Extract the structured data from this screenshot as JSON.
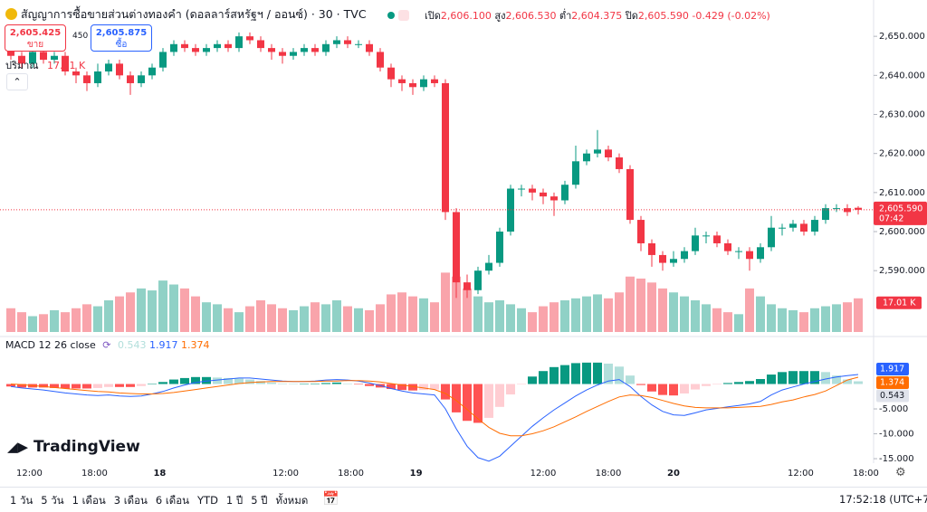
{
  "header": {
    "title": "สัญญาการซื้อขายส่วนต่างทองคำ (ดอลลาร์สหรัฐฯ / ออนซ์) · 30 · TVC",
    "open_label": "เปิด",
    "open": "2,606.100",
    "high_label": "สูง",
    "high": "2,606.530",
    "low_label": "ต่ำ",
    "low": "2,604.375",
    "close_label": "ปิด",
    "close": "2,605.590",
    "change": "-0.429 (-0.02%)",
    "sell_price": "2,605.425",
    "sell_label": "ขาย",
    "spread": "450",
    "buy_price": "2,605.875",
    "buy_label": "ซื้อ"
  },
  "toolbar": {
    "ranges": [
      "1 วัน",
      "5 วัน",
      "1 เดือน",
      "3 เดือน",
      "6 เดือน",
      "YTD",
      "1 ปี",
      "5 ปี",
      "ทั้งหมด"
    ],
    "clock": "17:52:18 (UTC+7)",
    "logo": "TradingView"
  },
  "chart_data": [
    {
      "type": "candlestick",
      "x": [
        1,
        2,
        3,
        4,
        5,
        6,
        7,
        8,
        9,
        10,
        11,
        12,
        13,
        14,
        15,
        16,
        17,
        18,
        19,
        20,
        21,
        22,
        23,
        24,
        25,
        26,
        27,
        28,
        29,
        30,
        31,
        32,
        33,
        34,
        35,
        36,
        37,
        38,
        39,
        40,
        41,
        42,
        43,
        44,
        45,
        46,
        47,
        48,
        49,
        50,
        51,
        52,
        53,
        54,
        55,
        56,
        57,
        58,
        59,
        60,
        61,
        62,
        63,
        64,
        65,
        66,
        67,
        68,
        69,
        70,
        71,
        72,
        73,
        74,
        75,
        76,
        77,
        78,
        79
      ],
      "open": [
        2647,
        2645,
        2643,
        2646,
        2644,
        2645,
        2641,
        2640,
        2638,
        2641,
        2643,
        2640,
        2638,
        2640,
        2642,
        2646,
        2648,
        2647,
        2646,
        2647,
        2648,
        2647,
        2650,
        2649,
        2647,
        2646,
        2645,
        2646,
        2647,
        2646,
        2648,
        2649,
        2648,
        2648,
        2646,
        2642,
        2639,
        2638,
        2637,
        2639,
        2638,
        2605,
        2587,
        2585,
        2590,
        2592,
        2600,
        2611,
        2611,
        2610,
        2609,
        2608,
        2612,
        2618,
        2620,
        2621,
        2619,
        2616,
        2603,
        2597,
        2594,
        2592,
        2593,
        2595,
        2599,
        2599,
        2597,
        2595,
        2595,
        2593,
        2596,
        2601,
        2601,
        2602,
        2600,
        2603,
        2606,
        2606,
        2606.1
      ],
      "high": [
        2648,
        2646,
        2647,
        2647,
        2646,
        2646,
        2642,
        2641,
        2643,
        2644,
        2644,
        2641,
        2641,
        2643,
        2647,
        2649,
        2649,
        2648,
        2648,
        2649,
        2649,
        2651,
        2651,
        2650,
        2648,
        2647,
        2647,
        2648,
        2648,
        2649,
        2650,
        2650,
        2649,
        2649,
        2647,
        2643,
        2640,
        2639,
        2640,
        2640,
        2639,
        2606,
        2589,
        2591,
        2594,
        2601,
        2612,
        2612,
        2612,
        2611,
        2610,
        2613,
        2622,
        2621,
        2626,
        2622,
        2620,
        2617,
        2604,
        2598,
        2595,
        2595,
        2596,
        2601,
        2600,
        2600,
        2598,
        2596,
        2596,
        2597,
        2604,
        2602,
        2603,
        2603,
        2604,
        2607,
        2607,
        2607,
        2606.53
      ],
      "low": [
        2644,
        2642,
        2642,
        2643,
        2643,
        2640,
        2638,
        2636,
        2637,
        2640,
        2639,
        2635,
        2637,
        2639,
        2641,
        2645,
        2646,
        2645,
        2645,
        2646,
        2646,
        2646,
        2648,
        2646,
        2644,
        2643,
        2644,
        2645,
        2645,
        2645,
        2647,
        2647,
        2647,
        2645,
        2641,
        2637,
        2636,
        2635,
        2636,
        2637,
        2603,
        2583,
        2583,
        2584,
        2589,
        2591,
        2599,
        2609,
        2608,
        2607,
        2604,
        2607,
        2611,
        2617,
        2619,
        2618,
        2615,
        2602,
        2595,
        2591,
        2590,
        2591,
        2592,
        2594,
        2597,
        2596,
        2594,
        2593,
        2590,
        2592,
        2595,
        2599,
        2600,
        2599,
        2599,
        2602,
        2605,
        2604,
        2604.375
      ],
      "close": [
        2645,
        2643,
        2646,
        2644,
        2645,
        2641,
        2640,
        2638,
        2641,
        2643,
        2640,
        2638,
        2640,
        2642,
        2646,
        2648,
        2647,
        2646,
        2647,
        2648,
        2647,
        2650,
        2649,
        2647,
        2646,
        2645,
        2646,
        2647,
        2646,
        2648,
        2649,
        2648,
        2648,
        2646,
        2642,
        2639,
        2638,
        2637,
        2639,
        2638,
        2605,
        2587,
        2585,
        2590,
        2592,
        2600,
        2611,
        2611,
        2610,
        2609,
        2608,
        2612,
        2618,
        2620,
        2621,
        2619,
        2616,
        2603,
        2597,
        2594,
        2592,
        2593,
        2595,
        2599,
        2599,
        2597,
        2595,
        2595,
        2593,
        2596,
        2601,
        2601,
        2602,
        2600,
        2603,
        2606,
        2606,
        2605,
        2605.59
      ],
      "last_price_label": "2,605.590",
      "countdown": "07:42",
      "up_color": "#089981",
      "down_color": "#f23645",
      "xlim": [
        0,
        80
      ],
      "xticks": [
        {
          "value": 2.7,
          "label": "12:00"
        },
        {
          "value": 8.7,
          "label": "18:00"
        },
        {
          "value": 14.7,
          "label": "18"
        },
        {
          "value": 26.3,
          "label": "12:00"
        },
        {
          "value": 32.3,
          "label": "18:00"
        },
        {
          "value": 38.3,
          "label": "19"
        },
        {
          "value": 50,
          "label": "12:00"
        },
        {
          "value": 56,
          "label": "18:00"
        },
        {
          "value": 62,
          "label": "20"
        },
        {
          "value": 73.7,
          "label": "12:00"
        },
        {
          "value": 79.7,
          "label": "18:00"
        }
      ],
      "ylim": [
        2573.6,
        2659.3
      ],
      "yticks": [
        {
          "value": 2590,
          "label": "2,590.000"
        },
        {
          "value": 2600,
          "label": "2,600.000"
        },
        {
          "value": 2610,
          "label": "2,610.000"
        },
        {
          "value": 2620,
          "label": "2,620.000"
        },
        {
          "value": 2630,
          "label": "2,630.000"
        },
        {
          "value": 2640,
          "label": "2,640.000"
        },
        {
          "value": 2650,
          "label": "2,650.000"
        }
      ],
      "volume": {
        "name": "ปริมาณ",
        "ylim": [
          0,
          32
        ],
        "values": [
          12,
          10,
          8,
          9,
          11,
          10,
          12,
          14,
          13,
          16,
          18,
          20,
          22,
          21,
          26,
          24,
          22,
          18,
          15,
          14,
          12,
          10,
          13,
          16,
          14,
          12,
          11,
          13,
          15,
          14,
          16,
          13,
          12,
          11,
          14,
          19,
          20,
          18,
          17,
          15,
          30,
          28,
          22,
          18,
          15,
          16,
          14,
          12,
          10,
          13,
          15,
          16,
          17,
          18,
          19,
          17,
          20,
          28,
          27,
          25,
          22,
          20,
          18,
          16,
          14,
          12,
          10,
          9,
          22,
          18,
          14,
          12,
          11,
          10,
          12,
          13,
          14,
          15,
          17.01
        ],
        "value_labels": [
          null,
          null,
          null,
          null,
          null,
          null,
          null,
          null,
          null,
          null,
          null,
          null,
          null,
          null,
          null,
          null,
          null,
          null,
          null,
          null,
          null,
          null,
          null,
          null,
          null,
          null,
          null,
          null,
          null,
          null,
          null,
          null,
          null,
          null,
          null,
          null,
          null,
          null,
          null,
          null,
          null,
          null,
          null,
          null,
          null,
          null,
          null,
          null,
          null,
          null,
          null,
          null,
          null,
          null,
          null,
          null,
          null,
          null,
          null,
          null,
          null,
          null,
          null,
          null,
          null,
          null,
          null,
          null,
          null,
          null,
          null,
          null,
          null,
          null,
          null,
          null,
          null,
          null,
          "17.01 K"
        ]
      }
    },
    {
      "type": "macd",
      "title": "MACD 12 26 close",
      "macd": [
        -0.5,
        -0.8,
        -1,
        -1.2,
        -1.5,
        -1.8,
        -2,
        -2.2,
        -2.3,
        -2.2,
        -2.4,
        -2.5,
        -2.4,
        -2,
        -1.5,
        -0.8,
        -0.2,
        0.3,
        0.6,
        0.8,
        1,
        1.2,
        1.2,
        1,
        0.8,
        0.6,
        0.5,
        0.5,
        0.6,
        0.8,
        0.9,
        0.8,
        0.6,
        0.2,
        -0.3,
        -0.9,
        -1.4,
        -1.8,
        -2,
        -2.2,
        -5,
        -9,
        -12.5,
        -14.8,
        -15.5,
        -14.5,
        -12.5,
        -10.5,
        -8.5,
        -6.8,
        -5.2,
        -3.8,
        -2.4,
        -1.2,
        -0.2,
        0.6,
        0.9,
        -0.5,
        -2.5,
        -4.2,
        -5.5,
        -6.2,
        -6.3,
        -5.8,
        -5.2,
        -4.9,
        -4.6,
        -4.3,
        -4,
        -3.5,
        -2.2,
        -1.2,
        -0.6,
        0,
        0.5,
        1,
        1.4,
        1.7,
        1.917
      ],
      "signal": [
        0,
        -0.1,
        -0.3,
        -0.5,
        -0.7,
        -0.9,
        -1.1,
        -1.3,
        -1.5,
        -1.6,
        -1.8,
        -1.9,
        -2,
        -2,
        -1.9,
        -1.7,
        -1.4,
        -1.1,
        -0.8,
        -0.5,
        -0.2,
        0.1,
        0.3,
        0.4,
        0.5,
        0.5,
        0.5,
        0.5,
        0.5,
        0.6,
        0.6,
        0.7,
        0.7,
        0.6,
        0.4,
        0.1,
        -0.2,
        -0.5,
        -0.8,
        -1.1,
        -1.9,
        -3.3,
        -5.1,
        -7,
        -8.7,
        -9.9,
        -10.4,
        -10.4,
        -10,
        -9.4,
        -8.6,
        -7.6,
        -6.6,
        -5.5,
        -4.5,
        -3.5,
        -2.6,
        -2.2,
        -2.3,
        -2.7,
        -3.3,
        -3.9,
        -4.4,
        -4.7,
        -4.8,
        -4.8,
        -4.8,
        -4.7,
        -4.6,
        -4.5,
        -4.1,
        -3.6,
        -3.2,
        -2.6,
        -2.1,
        -1.4,
        -0.3,
        0.8,
        1.374
      ],
      "histogram": [
        -0.5,
        -0.7,
        -0.7,
        -0.7,
        -0.8,
        -0.9,
        -0.9,
        -0.9,
        -0.8,
        -0.6,
        -0.6,
        -0.6,
        -0.4,
        0,
        0.4,
        0.9,
        1.2,
        1.4,
        1.4,
        1.3,
        1.2,
        1.1,
        0.9,
        0.6,
        0.3,
        0.1,
        0,
        0,
        0.1,
        0.2,
        0.3,
        0.1,
        -0.1,
        -0.4,
        -0.7,
        -1,
        -1.2,
        -1.3,
        -1.2,
        -1.1,
        -3.1,
        -5.7,
        -7.4,
        -7.8,
        -6.8,
        -4.6,
        -2.1,
        -0.1,
        1.5,
        2.6,
        3.4,
        3.8,
        4.2,
        4.3,
        4.3,
        4.1,
        3.5,
        1.7,
        -0.2,
        -1.5,
        -2.2,
        -2.3,
        -1.9,
        -1.1,
        -0.4,
        -0.1,
        0.2,
        0.4,
        0.6,
        1,
        1.9,
        2.4,
        2.6,
        2.6,
        2.6,
        2.4,
        1.7,
        0.9,
        0.543
      ],
      "histogram_label": "0.543",
      "macd_label": "1.917",
      "signal_label": "1.374",
      "macd_color": "#2962ff",
      "signal_color": "#ff6d00",
      "histogram_colors": [
        "#089981",
        "#b2dfdb",
        "#ffcdd2",
        "#ff5252"
      ],
      "ylim": [
        -15.9,
        9
      ],
      "yticks": [
        {
          "value": -5,
          "label": "-5.000"
        },
        {
          "value": -10,
          "label": "-10.000"
        },
        {
          "value": -15,
          "label": "-15.000"
        }
      ]
    }
  ]
}
